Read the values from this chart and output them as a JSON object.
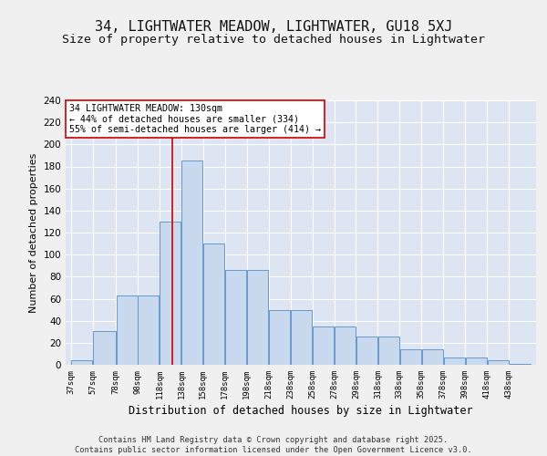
{
  "title1": "34, LIGHTWATER MEADOW, LIGHTWATER, GU18 5XJ",
  "title2": "Size of property relative to detached houses in Lightwater",
  "xlabel": "Distribution of detached houses by size in Lightwater",
  "ylabel": "Number of detached properties",
  "bin_edges": [
    37,
    57,
    78,
    98,
    118,
    138,
    158,
    178,
    198,
    218,
    238,
    258,
    278,
    298,
    318,
    338,
    358,
    378,
    398,
    418,
    438,
    458
  ],
  "bin_labels": [
    "37sqm",
    "57sqm",
    "78sqm",
    "98sqm",
    "118sqm",
    "138sqm",
    "158sqm",
    "178sqm",
    "198sqm",
    "218sqm",
    "238sqm",
    "258sqm",
    "278sqm",
    "298sqm",
    "318sqm",
    "338sqm",
    "358sqm",
    "378sqm",
    "398sqm",
    "418sqm",
    "438sqm"
  ],
  "heights": [
    4,
    31,
    63,
    63,
    130,
    185,
    110,
    86,
    86,
    50,
    50,
    35,
    35,
    26,
    26,
    14,
    14,
    7,
    7,
    4,
    1
  ],
  "bar_color": "#c8d9ee",
  "bar_edge_color": "#6699cc",
  "vline_x": 130,
  "vline_color": "#cc0000",
  "annotation_text": "34 LIGHTWATER MEADOW: 130sqm\n← 44% of detached houses are smaller (334)\n55% of semi-detached houses are larger (414) →",
  "annotation_box_color": "#ffffff",
  "annotation_box_edge": "#cc0000",
  "ylim": [
    0,
    240
  ],
  "yticks": [
    0,
    20,
    40,
    60,
    80,
    100,
    120,
    140,
    160,
    180,
    200,
    220,
    240
  ],
  "bg_color": "#dde5f3",
  "fig_bg_color": "#f0f0f0",
  "footer_text": "Contains HM Land Registry data © Crown copyright and database right 2025.\nContains public sector information licensed under the Open Government Licence v3.0.",
  "title1_fontsize": 11,
  "title2_fontsize": 9.5,
  "ylabel_fontsize": 8,
  "xlabel_fontsize": 8.5
}
